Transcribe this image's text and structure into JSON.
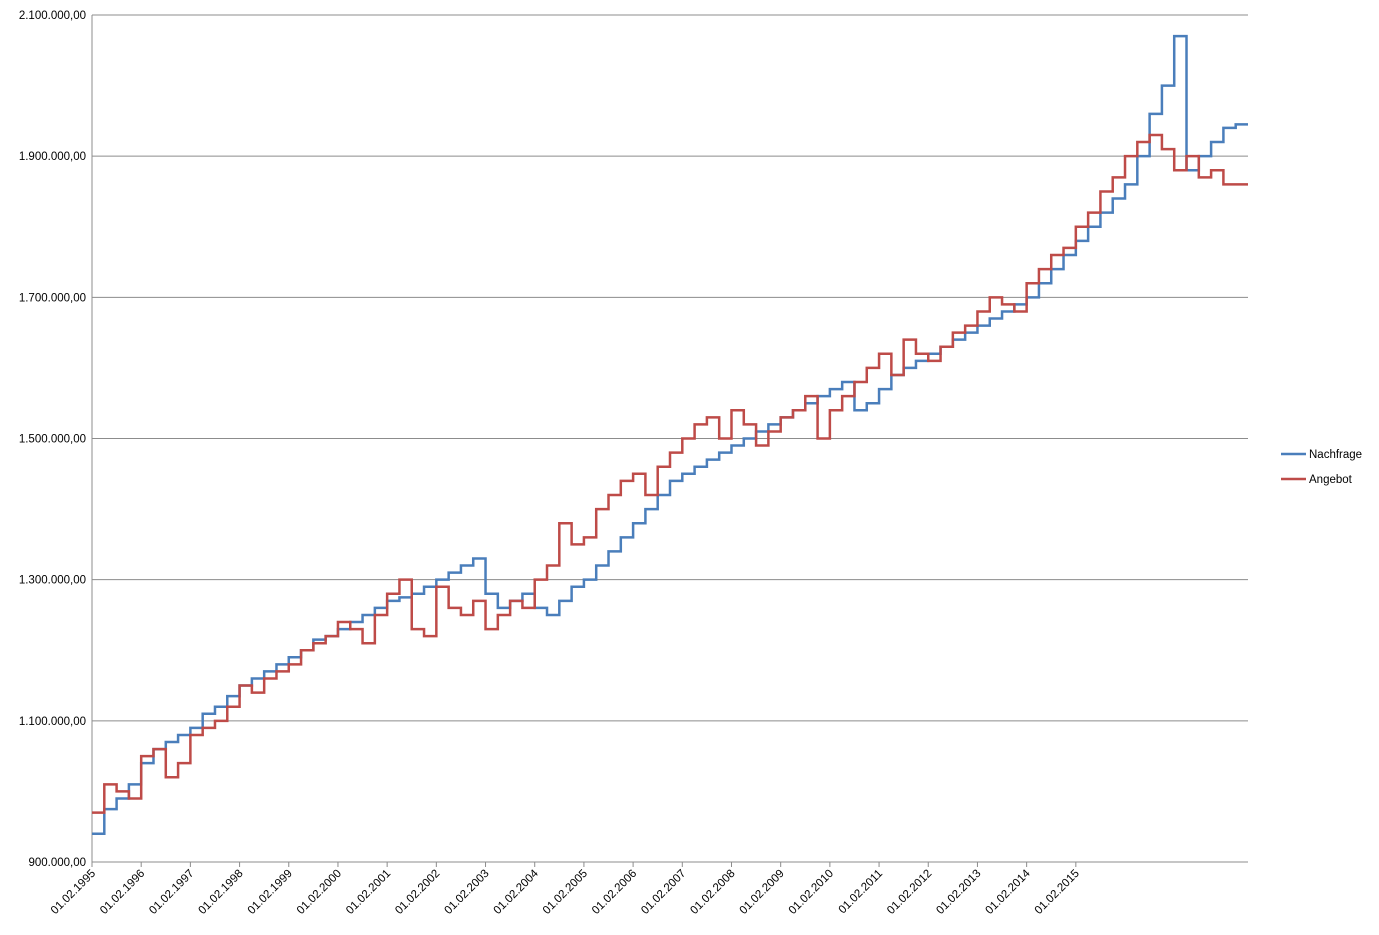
{
  "chart_data": {
    "type": "line",
    "step": true,
    "grid": true,
    "legend_position": "right",
    "x_start": "01.02.1995",
    "x_step": "quarter",
    "x_end": "01.11.2015",
    "x_ticks": [
      "01.02.1995",
      "01.02.1996",
      "01.02.1997",
      "01.02.1998",
      "01.02.1999",
      "01.02.2000",
      "01.02.2001",
      "01.02.2002",
      "01.02.2003",
      "01.02.2004",
      "01.02.2005",
      "01.02.2006",
      "01.02.2007",
      "01.02.2008",
      "01.02.2009",
      "01.02.2010",
      "01.02.2011",
      "01.02.2012",
      "01.02.2013",
      "01.02.2014",
      "01.02.2015"
    ],
    "y_ticks": [
      "900.000,00",
      "1.100.000,00",
      "1.300.000,00",
      "1.500.000,00",
      "1.700.000,00",
      "1.900.000,00",
      "2.100.000,00"
    ],
    "ylim": [
      900000,
      2100000
    ],
    "series": [
      {
        "name": "Nachfrage",
        "color": "#4a7ebb",
        "values": [
          940000,
          975000,
          990000,
          1010000,
          1040000,
          1060000,
          1070000,
          1080000,
          1090000,
          1110000,
          1120000,
          1135000,
          1150000,
          1160000,
          1170000,
          1180000,
          1190000,
          1200000,
          1215000,
          1220000,
          1230000,
          1240000,
          1250000,
          1260000,
          1270000,
          1275000,
          1280000,
          1290000,
          1300000,
          1310000,
          1320000,
          1330000,
          1280000,
          1260000,
          1270000,
          1280000,
          1260000,
          1250000,
          1270000,
          1290000,
          1300000,
          1320000,
          1340000,
          1360000,
          1380000,
          1400000,
          1420000,
          1440000,
          1450000,
          1460000,
          1470000,
          1480000,
          1490000,
          1500000,
          1510000,
          1520000,
          1530000,
          1540000,
          1550000,
          1560000,
          1570000,
          1580000,
          1540000,
          1550000,
          1570000,
          1590000,
          1600000,
          1610000,
          1620000,
          1630000,
          1640000,
          1650000,
          1660000,
          1670000,
          1680000,
          1690000,
          1700000,
          1720000,
          1740000,
          1760000,
          1780000,
          1800000,
          1820000,
          1840000,
          1860000,
          1900000,
          1960000,
          2000000,
          2070000,
          1880000,
          1900000,
          1920000,
          1940000,
          1945000
        ]
      },
      {
        "name": "Angebot",
        "color": "#be4b48",
        "values": [
          970000,
          1010000,
          1000000,
          990000,
          1050000,
          1060000,
          1020000,
          1040000,
          1080000,
          1090000,
          1100000,
          1120000,
          1150000,
          1140000,
          1160000,
          1170000,
          1180000,
          1200000,
          1210000,
          1220000,
          1240000,
          1230000,
          1210000,
          1250000,
          1280000,
          1300000,
          1230000,
          1220000,
          1290000,
          1260000,
          1250000,
          1270000,
          1230000,
          1250000,
          1270000,
          1260000,
          1300000,
          1320000,
          1380000,
          1350000,
          1360000,
          1400000,
          1420000,
          1440000,
          1450000,
          1420000,
          1460000,
          1480000,
          1500000,
          1520000,
          1530000,
          1500000,
          1540000,
          1520000,
          1490000,
          1510000,
          1530000,
          1540000,
          1560000,
          1500000,
          1540000,
          1560000,
          1580000,
          1600000,
          1620000,
          1590000,
          1640000,
          1620000,
          1610000,
          1630000,
          1650000,
          1660000,
          1680000,
          1700000,
          1690000,
          1680000,
          1720000,
          1740000,
          1760000,
          1770000,
          1800000,
          1820000,
          1850000,
          1870000,
          1900000,
          1920000,
          1930000,
          1910000,
          1880000,
          1900000,
          1870000,
          1880000,
          1860000,
          1860000
        ]
      }
    ]
  }
}
